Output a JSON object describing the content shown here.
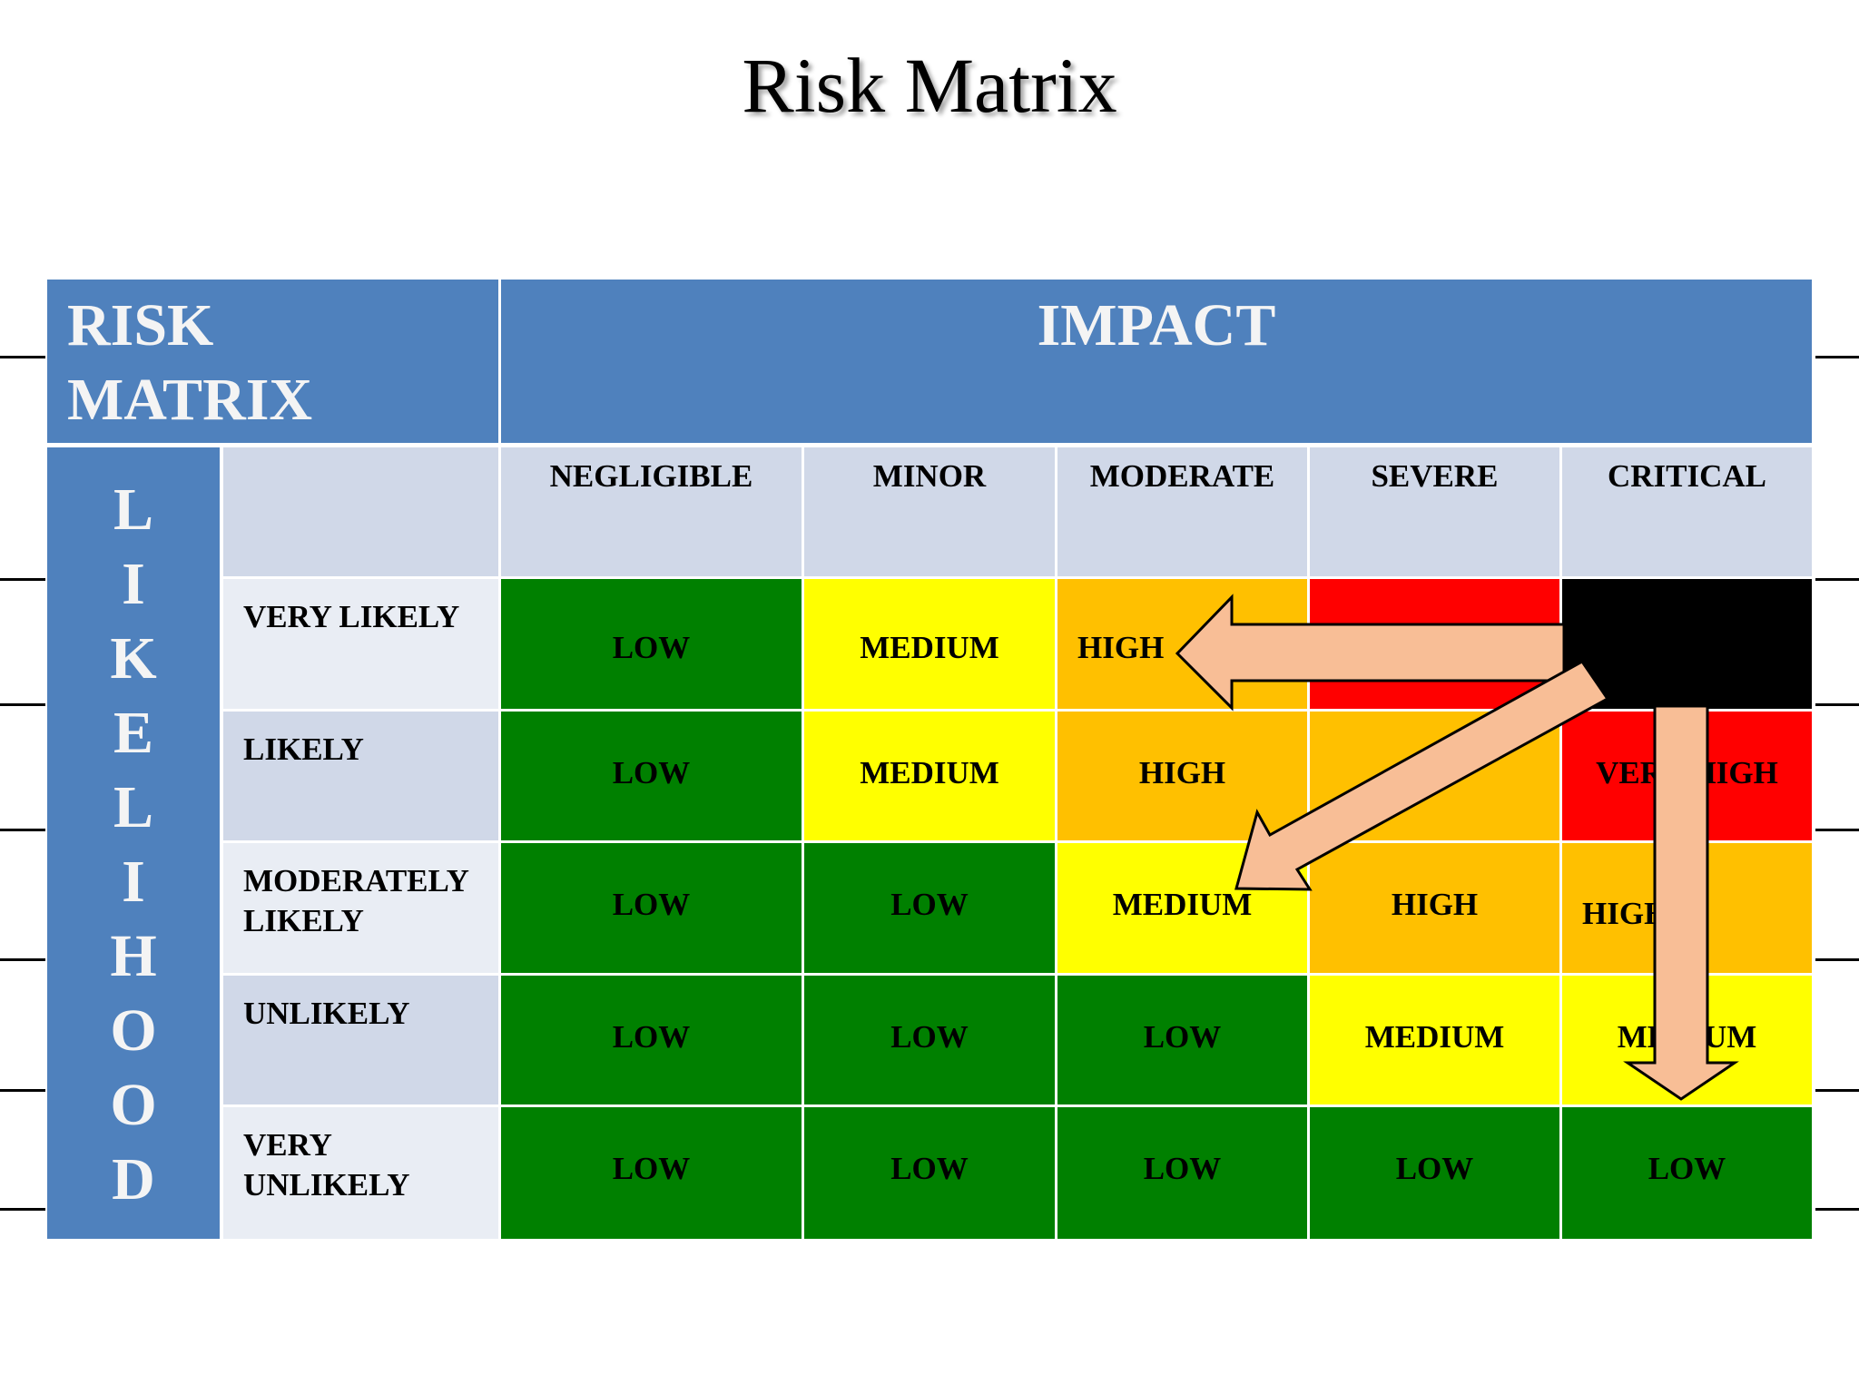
{
  "title": "Risk Matrix",
  "corner": {
    "line1": "RISK",
    "line2": "MATRIX"
  },
  "impact_label": "IMPACT",
  "likelihood_letters": [
    "L",
    "I",
    "K",
    "E",
    "L",
    "I",
    "H",
    "O",
    "O",
    "D"
  ],
  "columns": [
    "NEGLIGIBLE",
    "MINOR",
    "MODERATE",
    "SEVERE",
    "CRITICAL"
  ],
  "rows": [
    {
      "line1": "VERY LIKELY",
      "line2": ""
    },
    {
      "line1": "LIKELY",
      "line2": ""
    },
    {
      "line1": "MODERATELY",
      "line2": "LIKELY"
    },
    {
      "line1": "UNLIKELY",
      "line2": ""
    },
    {
      "line1": "VERY",
      "line2": "UNLIKELY"
    }
  ],
  "cells": [
    [
      "LOW",
      "MEDIUM",
      "HIGH",
      "",
      ""
    ],
    [
      "LOW",
      "MEDIUM",
      "HIGH",
      "",
      "VERY HIGH"
    ],
    [
      "LOW",
      "LOW",
      "MEDIUM",
      "HIGH",
      "HIGH"
    ],
    [
      "LOW",
      "LOW",
      "LOW",
      "MEDIUM",
      "MEDIUM"
    ],
    [
      "LOW",
      "LOW",
      "LOW",
      "LOW",
      "LOW"
    ]
  ],
  "colors": {
    "header_blue": "#4f81bd",
    "low": "#008000",
    "medium": "#ffff00",
    "high": "#ffc000",
    "very_high": "#ff0000",
    "arrow_fill": "#f8be96"
  }
}
